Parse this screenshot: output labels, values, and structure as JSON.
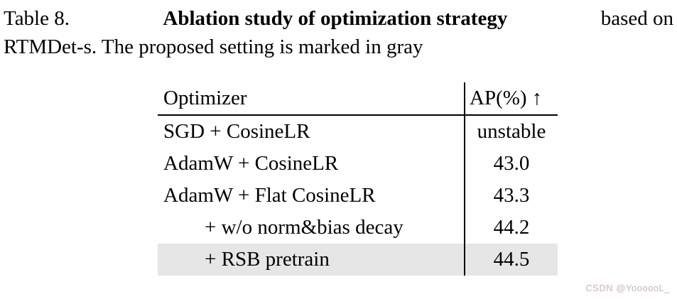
{
  "caption": {
    "prefix": "Table 8.",
    "bold_text": "Ablation study of optimization strategy",
    "line1_tail": "based on",
    "line2": "RTMDet-s. The proposed setting is marked in gray"
  },
  "table": {
    "headers": {
      "optimizer": "Optimizer",
      "ap": "AP(%) ↑"
    },
    "rows": [
      {
        "optimizer": "SGD + CosineLR",
        "ap": "unstable"
      },
      {
        "optimizer": "AdamW + CosineLR",
        "ap": "43.0"
      },
      {
        "optimizer": "AdamW + Flat CosineLR",
        "ap": "43.3"
      },
      {
        "optimizer": "+ w/o norm&bias decay",
        "ap": "44.2"
      },
      {
        "optimizer": "+ RSB pretrain",
        "ap": "44.5"
      }
    ],
    "highlighted_row_index": 4
  },
  "watermark": "CSDN @YoooooL_",
  "colors": {
    "highlight_row": "#e6e6e6",
    "rule": "#000000",
    "watermark": "#c9b2b2"
  }
}
